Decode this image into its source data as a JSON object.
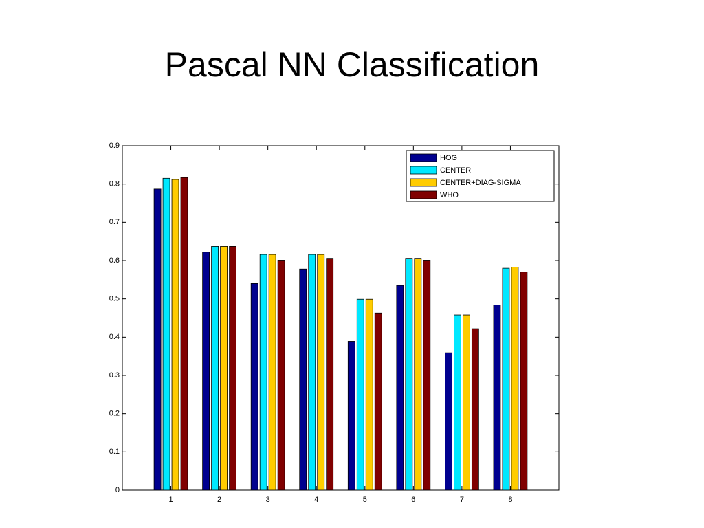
{
  "chart_data": {
    "type": "bar",
    "title": "Pascal NN Classification",
    "x": [
      1,
      2,
      3,
      4,
      5,
      6,
      7,
      8
    ],
    "xlim": [
      0,
      9
    ],
    "xticks": [
      1,
      2,
      3,
      4,
      5,
      6,
      7,
      8
    ],
    "ylim": [
      0,
      0.9
    ],
    "yticks": [
      0,
      0.1,
      0.2,
      0.3,
      0.4,
      0.5,
      0.6,
      0.7,
      0.8,
      0.9
    ],
    "grid": false,
    "legend": "upper right",
    "series": [
      {
        "name": "HOG",
        "color": "#00008f",
        "values": [
          0.787,
          0.622,
          0.54,
          0.578,
          0.389,
          0.535,
          0.359,
          0.484
        ]
      },
      {
        "name": "CENTER",
        "color": "#00e8ff",
        "values": [
          0.815,
          0.637,
          0.616,
          0.616,
          0.499,
          0.606,
          0.458,
          0.58
        ]
      },
      {
        "name": "CENTER+DIAG-SIGMA",
        "color": "#ffcc00",
        "values": [
          0.812,
          0.637,
          0.616,
          0.616,
          0.499,
          0.606,
          0.458,
          0.583
        ]
      },
      {
        "name": "WHO",
        "color": "#800000",
        "values": [
          0.817,
          0.637,
          0.601,
          0.606,
          0.463,
          0.601,
          0.422,
          0.57
        ]
      }
    ]
  }
}
